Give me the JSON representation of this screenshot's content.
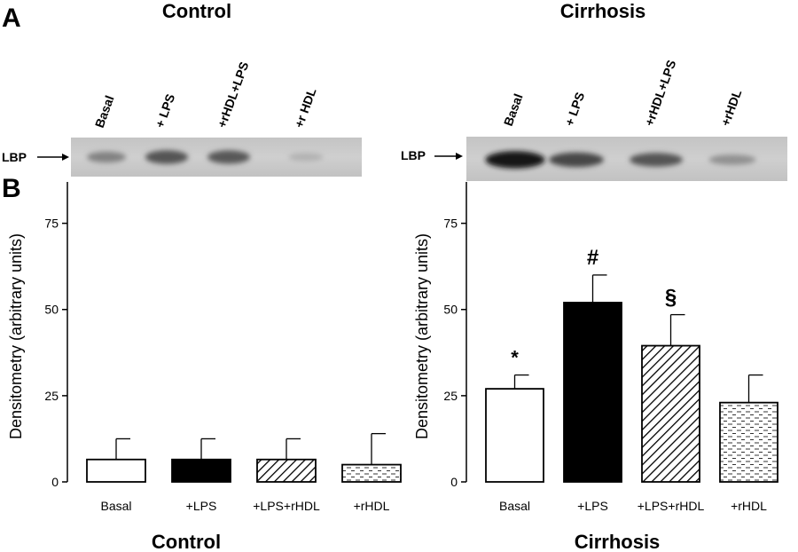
{
  "panel_labels": {
    "a": "A",
    "b": "B"
  },
  "blot": {
    "marker_label": "LBP",
    "panels": [
      {
        "title": "Control",
        "lanes": [
          "Basal",
          "+ LPS",
          "+rHDL+LPS",
          "+r HDL"
        ],
        "band_intensity": [
          0.38,
          0.62,
          0.6,
          0.12
        ]
      },
      {
        "title": "Cirrhosis",
        "lanes": [
          "Basal",
          "+ LPS",
          "+rHDL+LPS",
          "+rHDL"
        ],
        "band_intensity": [
          0.95,
          0.7,
          0.62,
          0.3
        ]
      }
    ]
  },
  "chart_data": [
    {
      "type": "bar",
      "title": "Control",
      "ylabel": "Densitometry (arbitrary units)",
      "ylim": [
        0,
        87
      ],
      "yticks": [
        0,
        25,
        50,
        75
      ],
      "categories": [
        "Basal",
        "+LPS",
        "+LPS+rHDL",
        "+rHDL"
      ],
      "values": [
        6.5,
        6.5,
        6.5,
        5
      ],
      "errors": [
        6,
        6,
        6,
        9
      ],
      "fills": [
        "white",
        "black",
        "diagonal-hatch",
        "dash-pattern"
      ],
      "annotations": [
        "",
        "",
        "",
        ""
      ]
    },
    {
      "type": "bar",
      "title": "Cirrhosis",
      "ylabel": "Densitometry (arbitrary units)",
      "ylim": [
        0,
        87
      ],
      "yticks": [
        0,
        25,
        50,
        75
      ],
      "categories": [
        "Basal",
        "+LPS",
        "+LPS+rHDL",
        "+rHDL"
      ],
      "values": [
        27,
        52,
        39.5,
        23
      ],
      "errors": [
        4,
        8,
        9,
        8
      ],
      "fills": [
        "white",
        "black",
        "diagonal-hatch",
        "dash-pattern"
      ],
      "annotations": [
        "*",
        "#",
        "§",
        ""
      ]
    }
  ]
}
